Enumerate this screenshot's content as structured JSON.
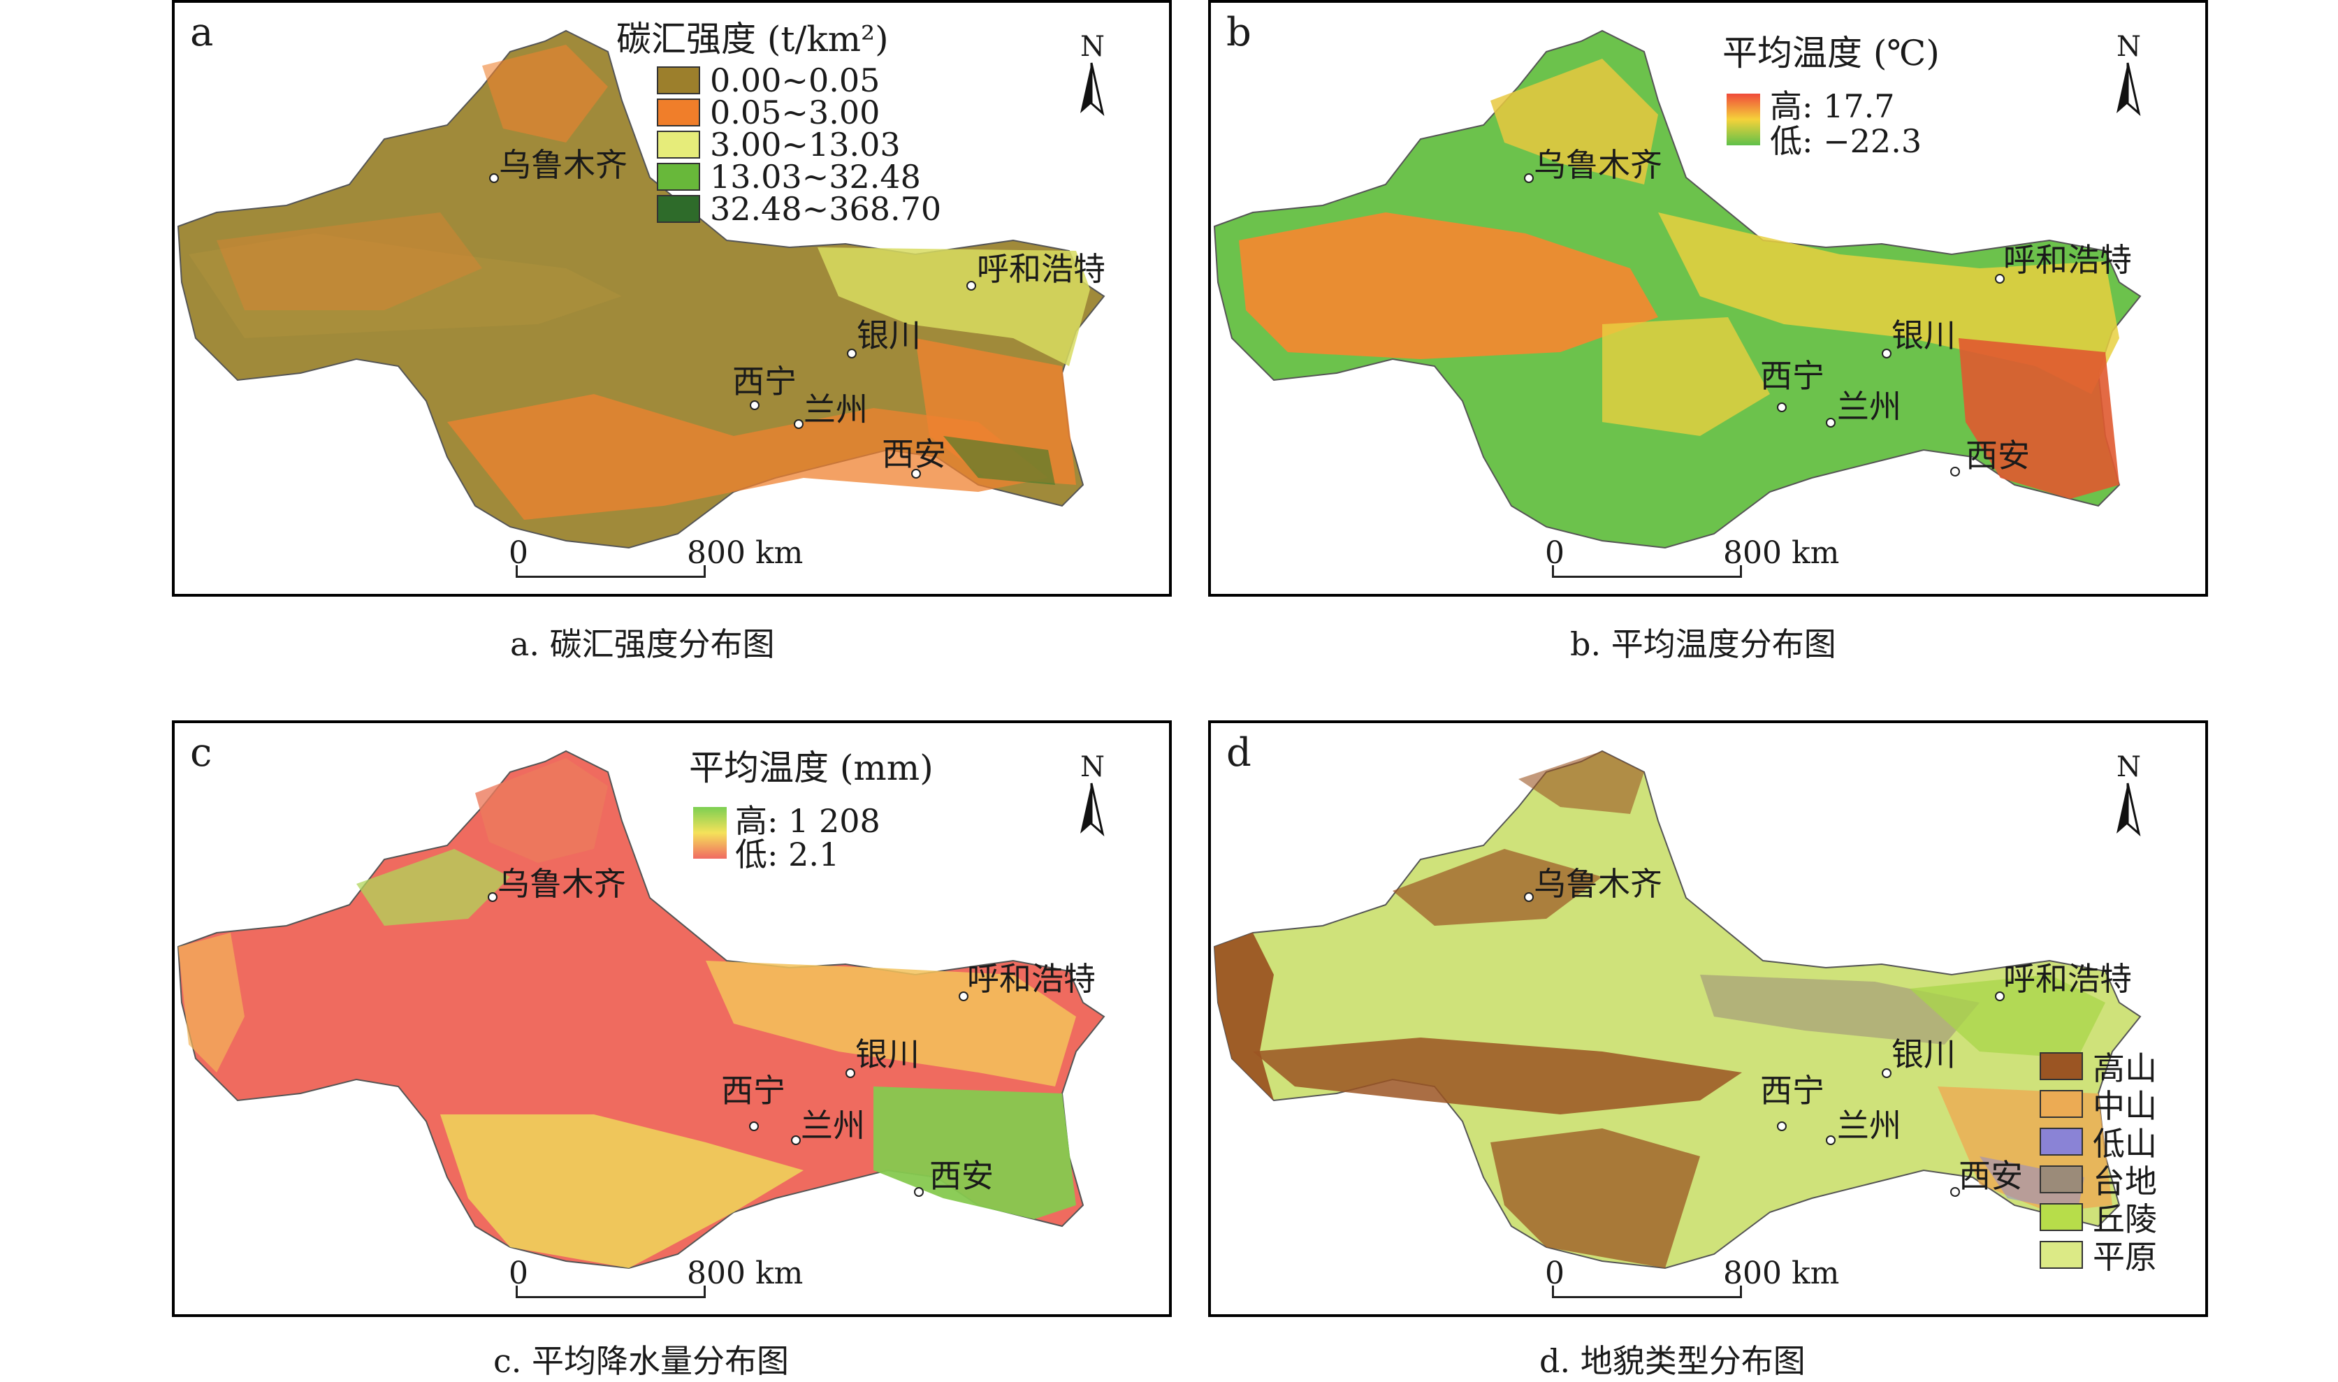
{
  "panels": [
    {
      "letter": "a",
      "legend_title": "碳汇强度 (t/km²)",
      "legend_items": [
        {
          "label": "0.00~0.05",
          "color": "#9c7f2c"
        },
        {
          "label": "0.05~3.00",
          "color": "#f07e2a"
        },
        {
          "label": "3.00~13.03",
          "color": "#e6ec7a"
        },
        {
          "label": "13.03~32.48",
          "color": "#68b83a"
        },
        {
          "label": "32.48~368.70",
          "color": "#2e6b2a"
        }
      ],
      "caption": "a. 碳汇强度分布图"
    },
    {
      "letter": "b",
      "legend_title": "平均温度 (℃)",
      "high_label": "高: 17.7",
      "low_label": "低: −22.3",
      "gradient": [
        "#f04a3a",
        "#f5d23a",
        "#5fc04a"
      ],
      "caption": "b. 平均温度分布图"
    },
    {
      "letter": "c",
      "legend_title": "平均温度 (mm)",
      "high_label": "高: 1 208",
      "low_label": "低: 2.1",
      "gradient": [
        "#7ccf52",
        "#f5e25a",
        "#f06a62"
      ],
      "caption": "c. 平均降水量分布图"
    },
    {
      "letter": "d",
      "legend_items": [
        {
          "label": "高山",
          "color": "#9b5523"
        },
        {
          "label": "中山",
          "color": "#ecab54"
        },
        {
          "label": "低山",
          "color": "#8a83d6"
        },
        {
          "label": "台地",
          "color": "#9b8b79"
        },
        {
          "label": "丘陵",
          "color": "#b7dd4a"
        },
        {
          "label": "平原",
          "color": "#dcea86"
        }
      ],
      "caption": "d. 地貌类型分布图"
    }
  ],
  "north_label": "N",
  "scale": {
    "zero": "0",
    "distance": "800 km"
  },
  "cities": {
    "urumqi": "乌鲁木齐",
    "hohhot": "呼和浩特",
    "yinchuan": "银川",
    "xining": "西宁",
    "lanzhou": "兰州",
    "xian": "西安"
  },
  "map_colors": {
    "a": {
      "base": "#a08a3a",
      "mid": "#ef8230",
      "east": "#d8dc60"
    },
    "b": {
      "base": "#f0a040",
      "mid": "#e8c840",
      "east": "#e05a30",
      "west": "#6cc24c"
    },
    "c": {
      "base": "#ef6b5f",
      "mid": "#f3c25a",
      "east": "#86c94f"
    },
    "d": {
      "base": "#cfe27a",
      "mid": "#a8d54a",
      "east": "#c8a060",
      "mtn": "#9b5523"
    }
  }
}
